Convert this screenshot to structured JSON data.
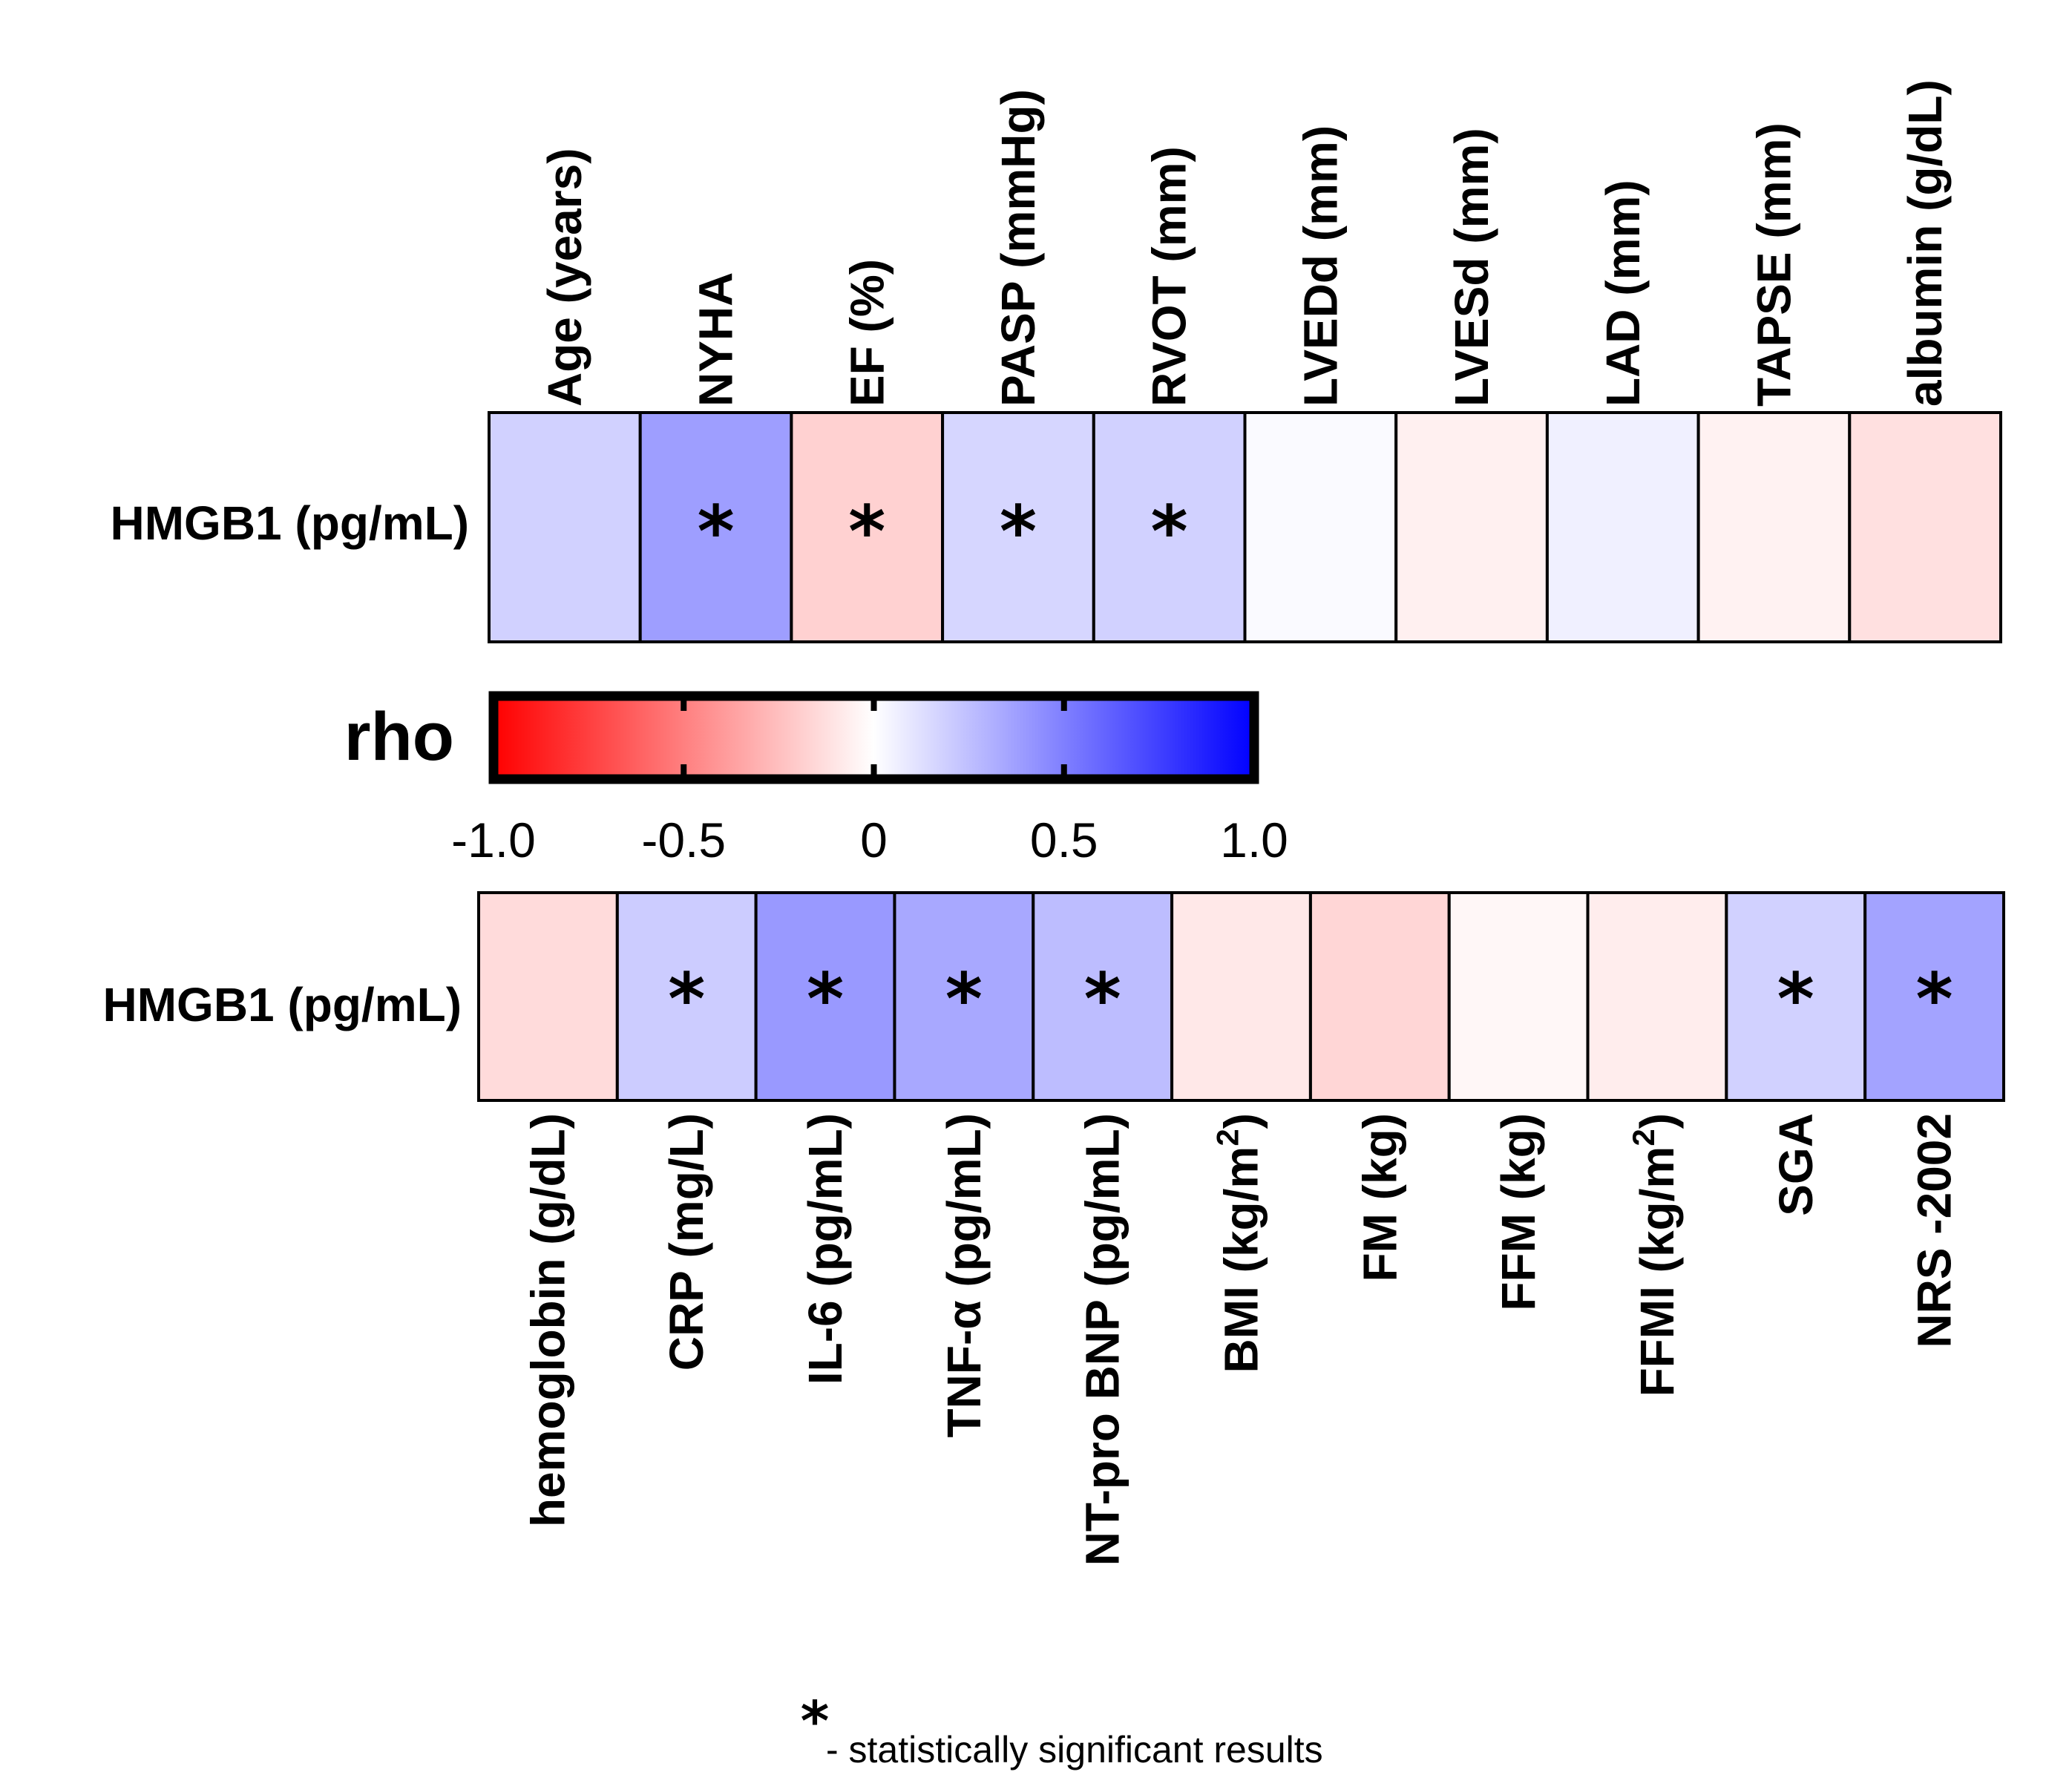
{
  "chart_data": [
    {
      "type": "heatmap",
      "row_label": "HMGB1 (pg/mL)",
      "column_label_position": "top",
      "columns": [
        "Age (years)",
        "NYHA",
        "EF (%)",
        "PASP (mmHg)",
        "RVOT (mm)",
        "LVEDd (mm)",
        "LVESd (mm)",
        "LAD (mm)",
        "TAPSE (mm)",
        "albumin (g/dL)"
      ],
      "rho": [
        0.18,
        0.38,
        -0.18,
        0.16,
        0.18,
        0.02,
        -0.06,
        0.06,
        -0.05,
        -0.12
      ],
      "significant": [
        false,
        true,
        true,
        true,
        true,
        false,
        false,
        false,
        false,
        false
      ]
    },
    {
      "type": "heatmap",
      "row_label": "HMGB1 (pg/mL)",
      "column_label_position": "bottom",
      "columns": [
        {
          "text": "hemoglobin (g/dL)",
          "sup": "",
          "tail": ""
        },
        {
          "text": "CRP (mg/L)",
          "sup": "",
          "tail": ""
        },
        {
          "text": "IL-6 (pg/mL)",
          "sup": "",
          "tail": ""
        },
        {
          "text": "TNF-α (pg/mL)",
          "sup": "",
          "tail": ""
        },
        {
          "text": "NT-pro BNP (pg/mL)",
          "sup": "",
          "tail": ""
        },
        {
          "text": "BMI (kg/m",
          "sup": "2",
          "tail": ")"
        },
        {
          "text": "FM (kg)",
          "sup": "",
          "tail": ""
        },
        {
          "text": "FFM (kg)",
          "sup": "",
          "tail": ""
        },
        {
          "text": "FFMI (kg/m",
          "sup": "2",
          "tail": ")"
        },
        {
          "text": "SGA",
          "sup": "",
          "tail": ""
        },
        {
          "text": "NRS -2002",
          "sup": "",
          "tail": ""
        }
      ],
      "rho": [
        -0.14,
        0.2,
        0.4,
        0.34,
        0.26,
        -0.09,
        -0.16,
        -0.03,
        -0.07,
        0.18,
        0.36
      ],
      "significant": [
        false,
        true,
        true,
        true,
        true,
        false,
        false,
        false,
        false,
        true,
        true
      ]
    }
  ],
  "colorbar": {
    "title": "rho",
    "min": -1.0,
    "max": 1.0,
    "ticks": [
      -1.0,
      -0.5,
      0,
      0.5,
      1.0
    ],
    "tick_labels": [
      "-1.0",
      "-0.5",
      "0",
      "0.5",
      "1.0"
    ],
    "colors": {
      "negative": "#ff0000",
      "zero": "#ffffff",
      "positive": "#0000ff"
    }
  },
  "marker": "*",
  "footnote": {
    "marker": "*",
    "text": "- statistically significant results"
  }
}
